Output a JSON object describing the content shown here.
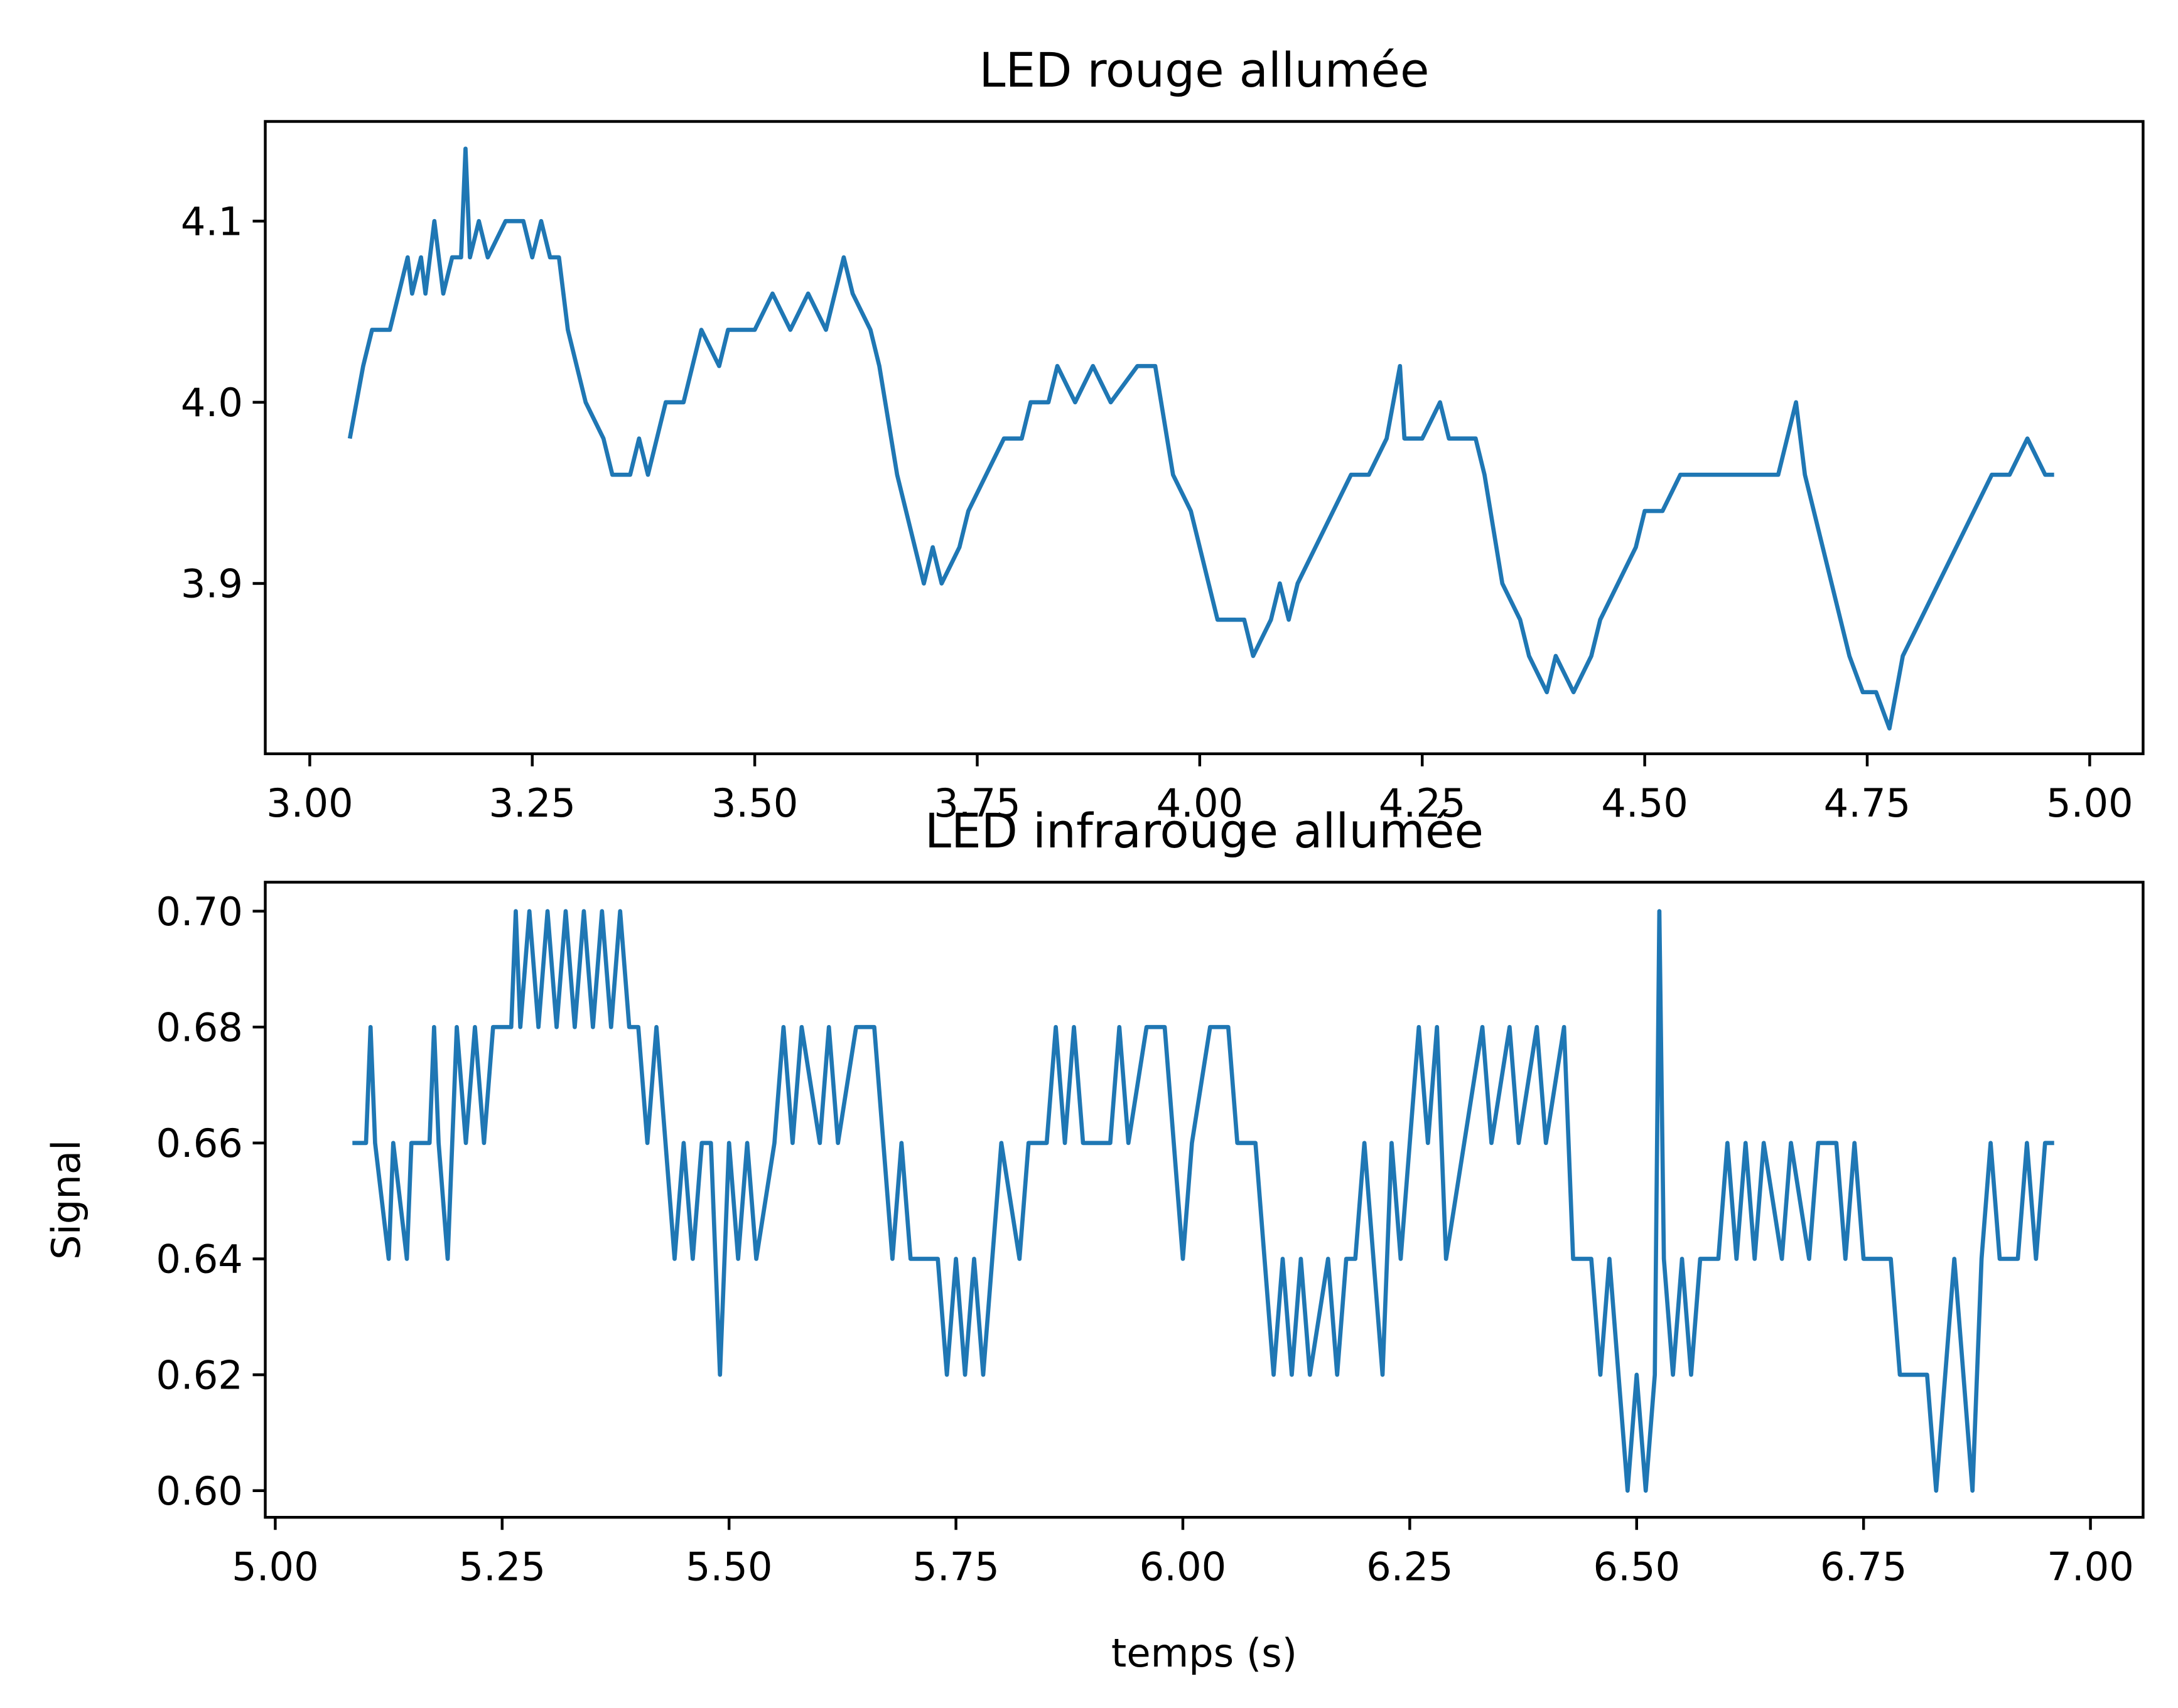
{
  "chart_data": [
    {
      "type": "line",
      "title": "LED rouge allumée",
      "xlim": [
        2.95,
        5.06
      ],
      "ylim": [
        3.806,
        4.155
      ],
      "xticks": [
        {
          "value": 3,
          "label": "3.00"
        },
        {
          "value": 3.25,
          "label": "3.25"
        },
        {
          "value": 3.5,
          "label": "3.50"
        },
        {
          "value": 3.75,
          "label": "3.75"
        },
        {
          "value": 4,
          "label": "4.00"
        },
        {
          "value": 4.25,
          "label": "4.25"
        },
        {
          "value": 4.5,
          "label": "4.50"
        },
        {
          "value": 4.75,
          "label": "4.75"
        },
        {
          "value": 5,
          "label": "5.00"
        }
      ],
      "yticks": [
        3.9,
        {
          "value": 4,
          "label": "4.0"
        },
        4.1
      ],
      "color": "#1f77b4",
      "x": [
        3.045,
        3.06,
        3.07,
        3.09,
        3.1,
        3.11,
        3.115,
        3.125,
        3.13,
        3.14,
        3.15,
        3.16,
        3.17,
        3.175,
        3.18,
        3.19,
        3.2,
        3.22,
        3.24,
        3.25,
        3.26,
        3.27,
        3.28,
        3.29,
        3.3,
        3.31,
        3.33,
        3.34,
        3.36,
        3.37,
        3.38,
        3.39,
        3.4,
        3.42,
        3.43,
        3.44,
        3.46,
        3.47,
        3.5,
        3.52,
        3.54,
        3.56,
        3.58,
        3.6,
        3.61,
        3.63,
        3.64,
        3.66,
        3.67,
        3.68,
        3.69,
        3.7,
        3.71,
        3.73,
        3.74,
        3.76,
        3.78,
        3.8,
        3.81,
        3.83,
        3.84,
        3.86,
        3.88,
        3.9,
        3.93,
        3.95,
        3.97,
        3.99,
        4.01,
        4.02,
        4.05,
        4.06,
        4.08,
        4.09,
        4.1,
        4.11,
        4.13,
        4.15,
        4.17,
        4.19,
        4.21,
        4.225,
        4.23,
        4.25,
        4.27,
        4.28,
        4.31,
        4.32,
        4.34,
        4.36,
        4.37,
        4.39,
        4.4,
        4.42,
        4.44,
        4.45,
        4.47,
        4.49,
        4.5,
        4.52,
        4.54,
        4.57,
        4.6,
        4.65,
        4.67,
        4.68,
        4.7,
        4.72,
        4.73,
        4.745,
        4.76,
        4.775,
        4.79,
        4.81,
        4.83,
        4.85,
        4.87,
        4.89,
        4.91,
        4.93,
        4.95,
        4.96
      ],
      "values": [
        3.98,
        4.02,
        4.04,
        4.04,
        4.06,
        4.08,
        4.06,
        4.08,
        4.06,
        4.1,
        4.06,
        4.08,
        4.08,
        4.14,
        4.08,
        4.1,
        4.08,
        4.1,
        4.1,
        4.08,
        4.1,
        4.08,
        4.08,
        4.04,
        4.02,
        4.0,
        3.98,
        3.96,
        3.96,
        3.98,
        3.96,
        3.98,
        4.0,
        4.0,
        4.02,
        4.04,
        4.02,
        4.04,
        4.04,
        4.06,
        4.04,
        4.06,
        4.04,
        4.08,
        4.06,
        4.04,
        4.02,
        3.96,
        3.94,
        3.92,
        3.9,
        3.92,
        3.9,
        3.92,
        3.94,
        3.96,
        3.98,
        3.98,
        4.0,
        4.0,
        4.02,
        4.0,
        4.02,
        4.0,
        4.02,
        4.02,
        3.96,
        3.94,
        3.9,
        3.88,
        3.88,
        3.86,
        3.88,
        3.9,
        3.88,
        3.9,
        3.92,
        3.94,
        3.96,
        3.96,
        3.98,
        4.02,
        3.98,
        3.98,
        4.0,
        3.98,
        3.98,
        3.96,
        3.9,
        3.88,
        3.86,
        3.84,
        3.86,
        3.84,
        3.86,
        3.88,
        3.9,
        3.92,
        3.94,
        3.94,
        3.96,
        3.96,
        3.96,
        3.96,
        4.0,
        3.96,
        3.92,
        3.88,
        3.86,
        3.84,
        3.84,
        3.82,
        3.86,
        3.88,
        3.9,
        3.92,
        3.94,
        3.96,
        3.96,
        3.98,
        3.96,
        3.96
      ]
    },
    {
      "type": "line",
      "title": "LED infrarouge allumée",
      "xlabel": "temps (s)",
      "ylabel": "Signal",
      "xlim": [
        4.989,
        7.058
      ],
      "ylim": [
        0.5954,
        0.705
      ],
      "xticks": [
        {
          "value": 5,
          "label": "5.00"
        },
        {
          "value": 5.25,
          "label": "5.25"
        },
        {
          "value": 5.5,
          "label": "5.50"
        },
        {
          "value": 5.75,
          "label": "5.75"
        },
        {
          "value": 6,
          "label": "6.00"
        },
        {
          "value": 6.25,
          "label": "6.25"
        },
        {
          "value": 6.5,
          "label": "6.50"
        },
        {
          "value": 6.75,
          "label": "6.75"
        },
        {
          "value": 7,
          "label": "7.00"
        }
      ],
      "yticks": [
        {
          "value": 0.6,
          "label": "0.60"
        },
        0.62,
        0.64,
        0.66,
        0.68,
        {
          "value": 0.7,
          "label": "0.70"
        }
      ],
      "color": "#1f77b4",
      "x": [
        5.085,
        5.1,
        5.105,
        5.11,
        5.125,
        5.13,
        5.145,
        5.15,
        5.17,
        5.175,
        5.18,
        5.19,
        5.2,
        5.21,
        5.22,
        5.23,
        5.24,
        5.26,
        5.265,
        5.27,
        5.28,
        5.29,
        5.3,
        5.31,
        5.32,
        5.33,
        5.34,
        5.35,
        5.36,
        5.37,
        5.38,
        5.39,
        5.4,
        5.41,
        5.42,
        5.43,
        5.44,
        5.45,
        5.46,
        5.47,
        5.48,
        5.49,
        5.5,
        5.51,
        5.52,
        5.53,
        5.55,
        5.56,
        5.57,
        5.58,
        5.6,
        5.61,
        5.62,
        5.64,
        5.66,
        5.67,
        5.68,
        5.69,
        5.7,
        5.73,
        5.74,
        5.75,
        5.76,
        5.77,
        5.78,
        5.79,
        5.8,
        5.82,
        5.83,
        5.85,
        5.86,
        5.87,
        5.88,
        5.89,
        5.92,
        5.93,
        5.94,
        5.96,
        5.98,
        5.99,
        6.0,
        6.01,
        6.03,
        6.05,
        6.06,
        6.08,
        6.09,
        6.1,
        6.11,
        6.12,
        6.13,
        6.14,
        6.16,
        6.17,
        6.18,
        6.19,
        6.2,
        6.21,
        6.22,
        6.23,
        6.24,
        6.25,
        6.26,
        6.27,
        6.28,
        6.29,
        6.31,
        6.33,
        6.34,
        6.36,
        6.37,
        6.39,
        6.4,
        6.42,
        6.43,
        6.45,
        6.46,
        6.47,
        6.48,
        6.49,
        6.5,
        6.51,
        6.52,
        6.525,
        6.53,
        6.54,
        6.55,
        6.56,
        6.57,
        6.59,
        6.6,
        6.61,
        6.62,
        6.63,
        6.64,
        6.66,
        6.67,
        6.69,
        6.7,
        6.72,
        6.73,
        6.74,
        6.75,
        6.78,
        6.79,
        6.82,
        6.83,
        6.84,
        6.85,
        6.86,
        6.87,
        6.88,
        6.89,
        6.9,
        6.92,
        6.93,
        6.94,
        6.95,
        6.96
      ],
      "values": [
        0.66,
        0.66,
        0.68,
        0.66,
        0.64,
        0.66,
        0.64,
        0.66,
        0.66,
        0.68,
        0.66,
        0.64,
        0.68,
        0.66,
        0.68,
        0.66,
        0.68,
        0.68,
        0.7,
        0.68,
        0.7,
        0.68,
        0.7,
        0.68,
        0.7,
        0.68,
        0.7,
        0.68,
        0.7,
        0.68,
        0.7,
        0.68,
        0.68,
        0.66,
        0.68,
        0.66,
        0.64,
        0.66,
        0.64,
        0.66,
        0.66,
        0.62,
        0.66,
        0.64,
        0.66,
        0.64,
        0.66,
        0.68,
        0.66,
        0.68,
        0.66,
        0.68,
        0.66,
        0.68,
        0.68,
        0.66,
        0.64,
        0.66,
        0.64,
        0.64,
        0.62,
        0.64,
        0.62,
        0.64,
        0.62,
        0.64,
        0.66,
        0.64,
        0.66,
        0.66,
        0.68,
        0.66,
        0.68,
        0.66,
        0.66,
        0.68,
        0.66,
        0.68,
        0.68,
        0.66,
        0.64,
        0.66,
        0.68,
        0.68,
        0.66,
        0.66,
        0.64,
        0.62,
        0.64,
        0.62,
        0.64,
        0.62,
        0.64,
        0.62,
        0.64,
        0.64,
        0.66,
        0.64,
        0.62,
        0.66,
        0.64,
        0.66,
        0.68,
        0.66,
        0.68,
        0.64,
        0.66,
        0.68,
        0.66,
        0.68,
        0.66,
        0.68,
        0.66,
        0.68,
        0.64,
        0.64,
        0.62,
        0.64,
        0.62,
        0.6,
        0.62,
        0.6,
        0.62,
        0.7,
        0.64,
        0.62,
        0.64,
        0.62,
        0.64,
        0.64,
        0.66,
        0.64,
        0.66,
        0.64,
        0.66,
        0.64,
        0.66,
        0.64,
        0.66,
        0.66,
        0.64,
        0.66,
        0.64,
        0.64,
        0.62,
        0.62,
        0.6,
        0.62,
        0.64,
        0.62,
        0.6,
        0.64,
        0.66,
        0.64,
        0.64,
        0.66,
        0.64,
        0.66,
        0.66
      ]
    }
  ]
}
